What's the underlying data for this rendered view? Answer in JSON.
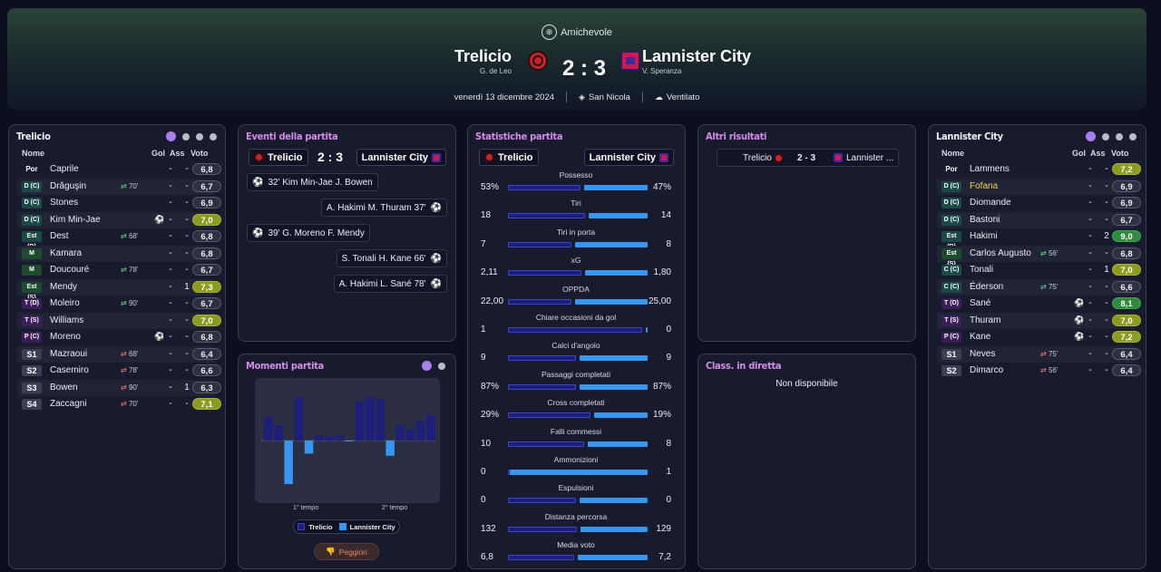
{
  "header": {
    "competition": "Amichevole",
    "home_team": "Trelicio",
    "home_manager": "G. de Leo",
    "away_team": "Lannister City",
    "away_manager": "V. Speranza",
    "score": "2 : 3",
    "date": "venerdì 13 dicembre 2024",
    "stadium": "San Nicola",
    "weather": "Ventilato"
  },
  "home_lineup": {
    "title": "Trelicio",
    "col_name": "Nome",
    "col_gol": "Gol",
    "col_ass": "Ass",
    "col_vote": "Voto",
    "players": [
      {
        "pos": "Por",
        "name": "Caprile",
        "sub": "",
        "event": "",
        "gol": "-",
        "ass": "-",
        "vote": "6,8"
      },
      {
        "pos": "D (C)",
        "name": "Drăguşin",
        "sub": "70'",
        "event": "",
        "gol": "-",
        "ass": "-",
        "vote": "6,7"
      },
      {
        "pos": "D (C)",
        "name": "Stones",
        "sub": "",
        "event": "",
        "gol": "-",
        "ass": "-",
        "vote": "6,9"
      },
      {
        "pos": "D (C)",
        "name": "Kim Min-Jae",
        "sub": "",
        "event": "ball",
        "gol": "-",
        "ass": "-",
        "vote": "7,0"
      },
      {
        "pos": "Est (D)",
        "name": "Dest",
        "sub": "68'",
        "event": "",
        "gol": "-",
        "ass": "-",
        "vote": "6,8"
      },
      {
        "pos": "M",
        "name": "Kamara",
        "sub": "",
        "event": "",
        "gol": "-",
        "ass": "-",
        "vote": "6,8"
      },
      {
        "pos": "M",
        "name": "Doucouré",
        "sub": "78'",
        "event": "",
        "gol": "-",
        "ass": "-",
        "vote": "6,7"
      },
      {
        "pos": "Est (S)",
        "name": "Mendy",
        "sub": "",
        "event": "",
        "gol": "-",
        "ass": "1",
        "vote": "7,3"
      },
      {
        "pos": "T (D)",
        "name": "Moleiro",
        "sub": "90'",
        "event": "",
        "gol": "-",
        "ass": "-",
        "vote": "6,7"
      },
      {
        "pos": "T (S)",
        "name": "Williams",
        "sub": "",
        "event": "",
        "gol": "-",
        "ass": "-",
        "vote": "7,0"
      },
      {
        "pos": "P (C)",
        "name": "Moreno",
        "sub": "",
        "event": "ball",
        "gol": "-",
        "ass": "-",
        "vote": "6,8"
      },
      {
        "pos": "S1",
        "name": "Mazraoui",
        "sub": "68'",
        "event": "",
        "gol": "-",
        "ass": "-",
        "vote": "6,4"
      },
      {
        "pos": "S2",
        "name": "Casemiro",
        "sub": "78'",
        "event": "",
        "gol": "-",
        "ass": "-",
        "vote": "6,6"
      },
      {
        "pos": "S3",
        "name": "Bowen",
        "sub": "90'",
        "event": "",
        "gol": "-",
        "ass": "1",
        "vote": "6,3"
      },
      {
        "pos": "S4",
        "name": "Zaccagni",
        "sub": "70'",
        "event": "",
        "gol": "-",
        "ass": "-",
        "vote": "7,1"
      }
    ]
  },
  "away_lineup": {
    "title": "Lannister City",
    "col_name": "Nome",
    "col_gol": "Gol",
    "col_ass": "Ass",
    "col_vote": "Voto",
    "players": [
      {
        "pos": "Por",
        "name": "Lammens",
        "sub": "",
        "event": "",
        "gol": "-",
        "ass": "-",
        "vote": "7,2"
      },
      {
        "pos": "D (C)",
        "name": "Fofana",
        "sub": "",
        "event": "",
        "gol": "-",
        "ass": "-",
        "vote": "6,9"
      },
      {
        "pos": "D (C)",
        "name": "Diomande",
        "sub": "",
        "event": "",
        "gol": "-",
        "ass": "-",
        "vote": "6,9"
      },
      {
        "pos": "D (C)",
        "name": "Bastoni",
        "sub": "",
        "event": "",
        "gol": "-",
        "ass": "-",
        "vote": "6,7"
      },
      {
        "pos": "Est (D)",
        "name": "Hakimi",
        "sub": "",
        "event": "",
        "gol": "-",
        "ass": "2",
        "vote": "9,0"
      },
      {
        "pos": "Est (S)",
        "name": "Carlos Augusto",
        "sub": "56'",
        "event": "",
        "gol": "-",
        "ass": "-",
        "vote": "6,8"
      },
      {
        "pos": "C (C)",
        "name": "Tonali",
        "sub": "",
        "event": "",
        "gol": "-",
        "ass": "1",
        "vote": "7,0"
      },
      {
        "pos": "C (C)",
        "name": "Éderson",
        "sub": "75'",
        "event": "",
        "gol": "-",
        "ass": "-",
        "vote": "6,6"
      },
      {
        "pos": "T (D)",
        "name": "Sané",
        "sub": "",
        "event": "ball",
        "gol": "-",
        "ass": "-",
        "vote": "8,1"
      },
      {
        "pos": "T (S)",
        "name": "Thuram",
        "sub": "",
        "event": "ball",
        "gol": "-",
        "ass": "-",
        "vote": "7,0"
      },
      {
        "pos": "P (C)",
        "name": "Kane",
        "sub": "",
        "event": "ball",
        "gol": "-",
        "ass": "-",
        "vote": "7,2"
      },
      {
        "pos": "S1",
        "name": "Neves",
        "sub": "75'",
        "event": "",
        "gol": "-",
        "ass": "-",
        "vote": "6,4"
      },
      {
        "pos": "S2",
        "name": "Dimarco",
        "sub": "56'",
        "event": "",
        "gol": "-",
        "ass": "-",
        "vote": "6,4"
      }
    ]
  },
  "events": {
    "title": "Eventi della partita",
    "home": "Trelicio",
    "away": "Lannister City",
    "score": "2 : 3",
    "list": [
      {
        "side": "home",
        "text": "32' Kim Min-Jae J. Bowen"
      },
      {
        "side": "away",
        "text": "A. Hakimi M. Thuram 37'"
      },
      {
        "side": "home",
        "text": "39' G. Moreno F. Mendy"
      },
      {
        "side": "away",
        "text": "S. Tonali H. Kane 66'"
      },
      {
        "side": "away",
        "text": "A. Hakimi L. Sané 78'"
      }
    ]
  },
  "momentum": {
    "title": "Momenti partita",
    "first_half": "1° tempo",
    "second_half": "2° tempo",
    "legend_home": "Trelicio",
    "legend_away": "Lannister City",
    "worst_button": "Peggiori",
    "home_color": "#1d1f7a",
    "away_color": "#3797f0",
    "bars": [
      0.55,
      0.35,
      -1.0,
      1.0,
      -0.3,
      0.12,
      0.1,
      0.12,
      -0.02,
      0.9,
      1.0,
      0.95,
      -0.35,
      0.35,
      0.25,
      0.45,
      0.6
    ]
  },
  "stats": {
    "title": "Statistiche partita",
    "home": "Trelicio",
    "away": "Lannister City",
    "rows": [
      {
        "label": "Possesso",
        "home": "53%",
        "away": "47%",
        "hv": 53,
        "av": 47
      },
      {
        "label": "Tiri",
        "home": "18",
        "away": "14",
        "hv": 18,
        "av": 14
      },
      {
        "label": "Tiri in porta",
        "home": "7",
        "away": "8",
        "hv": 7,
        "av": 8
      },
      {
        "label": "xG",
        "home": "2,11",
        "away": "1,80",
        "hv": 2.11,
        "av": 1.8
      },
      {
        "label": "OPPDA",
        "home": "22,00",
        "away": "25,00",
        "hv": 22,
        "av": 25
      },
      {
        "label": "Chiare occasioni da gol",
        "home": "1",
        "away": "0",
        "hv": 1,
        "av": 0
      },
      {
        "label": "Calci d'angolo",
        "home": "9",
        "away": "9",
        "hv": 9,
        "av": 9
      },
      {
        "label": "Passaggi completati",
        "home": "87%",
        "away": "87%",
        "hv": 87,
        "av": 87
      },
      {
        "label": "Cross completati",
        "home": "29%",
        "away": "19%",
        "hv": 29,
        "av": 19
      },
      {
        "label": "Falli commessi",
        "home": "10",
        "away": "8",
        "hv": 10,
        "av": 8
      },
      {
        "label": "Ammonizioni",
        "home": "0",
        "away": "1",
        "hv": 0,
        "av": 1
      },
      {
        "label": "Espulsioni",
        "home": "0",
        "away": "0",
        "hv": 0,
        "av": 0
      },
      {
        "label": "Distanza percorsa",
        "home": "132",
        "away": "129",
        "hv": 132,
        "av": 129
      },
      {
        "label": "Media voto",
        "home": "6,8",
        "away": "7,2",
        "hv": 6.8,
        "av": 7.2
      }
    ]
  },
  "other_results": {
    "title": "Altri risultati",
    "home": "Trelicio",
    "score": "2 - 3",
    "away": "Lannister ..."
  },
  "live_table": {
    "title": "Class. in diretta",
    "message": "Non disponibile"
  }
}
